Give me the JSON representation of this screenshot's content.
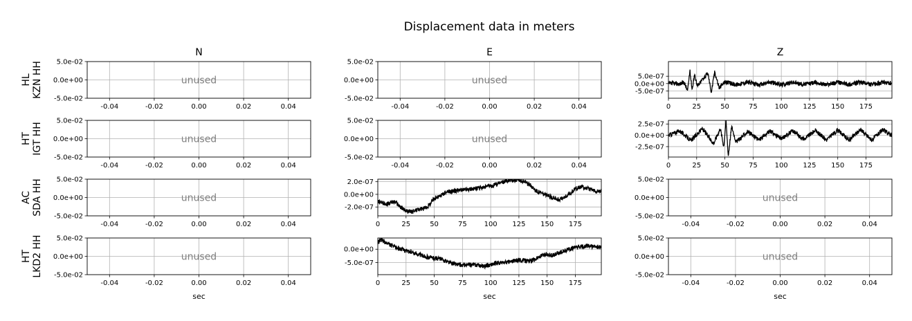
{
  "title": "Displacement data in meters",
  "column_titles": [
    "N",
    "E",
    "Z"
  ],
  "row_labels": [
    {
      "network": "HL",
      "station": "KZN HH"
    },
    {
      "network": "HT",
      "station": "IGT HH"
    },
    {
      "network": "AC",
      "station": "SDA HH"
    },
    {
      "network": "HT",
      "station": "LKD2 HH"
    }
  ],
  "xlabel": "sec",
  "unused_text": "unused",
  "unused_axis": {
    "xticks": [
      "-0.04",
      "-0.02",
      "0.00",
      "0.02",
      "0.04"
    ],
    "xtick_values": [
      -0.04,
      -0.02,
      0.0,
      0.02,
      0.04
    ],
    "xlim": [
      -0.05,
      0.05
    ],
    "yticks": [
      "5.0e-02",
      "0.0e+00",
      "-5.0e-02"
    ],
    "ytick_values": [
      0.05,
      0.0,
      -0.05
    ],
    "ylim": [
      -0.05,
      0.05
    ]
  },
  "chart_data": [
    {
      "type": "line",
      "row": 0,
      "col": 0,
      "unused": true
    },
    {
      "type": "line",
      "row": 0,
      "col": 1,
      "unused": true
    },
    {
      "type": "line",
      "row": 0,
      "col": 2,
      "unused": false,
      "xlim": [
        0,
        198
      ],
      "ylim": [
        -1e-06,
        1.5e-06
      ],
      "xticks": [
        0,
        25,
        50,
        75,
        100,
        125,
        150,
        175
      ],
      "yticks": [
        5e-07,
        0.0,
        -5e-07
      ],
      "ytick_labels": [
        "5.0e-07",
        "0.0e+00",
        "-5.0e-07"
      ],
      "series": [
        {
          "x": [
            0,
            5,
            10,
            14,
            17,
            19,
            21,
            23,
            26,
            30,
            35,
            38,
            41,
            45,
            50,
            60,
            70,
            80,
            90,
            100,
            110,
            120,
            130,
            140,
            150,
            160,
            170,
            180,
            190,
            198
          ],
          "y": [
            0.0,
            1e-08,
            -2e-08,
            8e-08,
            -5e-07,
            9e-07,
            -4e-07,
            6e-07,
            -2e-07,
            3e-07,
            7e-07,
            -6e-07,
            8e-07,
            -3e-07,
            1.2e-07,
            -8e-08,
            1e-07,
            -9e-08,
            1e-07,
            -7e-08,
            9e-08,
            -6e-08,
            8e-08,
            -7e-08,
            9e-08,
            -6e-08,
            8e-08,
            -7e-08,
            8e-08,
            0.0
          ]
        }
      ]
    },
    {
      "type": "line",
      "row": 1,
      "col": 0,
      "unused": true
    },
    {
      "type": "line",
      "row": 1,
      "col": 1,
      "unused": true
    },
    {
      "type": "line",
      "row": 1,
      "col": 2,
      "unused": false,
      "xlim": [
        0,
        198
      ],
      "ylim": [
        -4.8e-07,
        3.3e-07
      ],
      "xticks": [
        0,
        25,
        50,
        75,
        100,
        125,
        150,
        175
      ],
      "yticks": [
        2.5e-07,
        0.0,
        -2.5e-07
      ],
      "ytick_labels": [
        "2.5e-07",
        "0.0e+00",
        "-2.5e-07"
      ],
      "series": [
        {
          "x": [
            0,
            10,
            20,
            30,
            40,
            46,
            49,
            51,
            53,
            56,
            60,
            70,
            80,
            90,
            100,
            110,
            120,
            130,
            140,
            150,
            160,
            170,
            180,
            190,
            198
          ],
          "y": [
            0.0,
            1e-07,
            -1.2e-07,
            1.5e-07,
            -1.8e-07,
            1.6e-07,
            -2.5e-07,
            3.3e-07,
            -4.5e-07,
            2e-07,
            -1.5e-07,
            8e-08,
            -1e-07,
            9e-08,
            -8e-08,
            1e-07,
            -9e-08,
            1.1e-07,
            -1e-07,
            1.2e-07,
            -1.1e-07,
            1.3e-07,
            -1e-07,
            1.2e-07,
            0.0
          ]
        }
      ]
    },
    {
      "type": "line",
      "row": 2,
      "col": 0,
      "unused": true
    },
    {
      "type": "line",
      "row": 2,
      "col": 1,
      "unused": false,
      "xlim": [
        0,
        198
      ],
      "ylim": [
        -3.4e-07,
        2.4e-07
      ],
      "xticks": [
        0,
        25,
        50,
        75,
        100,
        125,
        150,
        175
      ],
      "yticks": [
        2e-07,
        0.0,
        -2e-07
      ],
      "ytick_labels": [
        "2.0e-07",
        "0.0e+00",
        "-2.0e-07"
      ],
      "series": [
        {
          "x": [
            0,
            8,
            15,
            20,
            25,
            30,
            35,
            40,
            45,
            50,
            55,
            60,
            70,
            80,
            90,
            100,
            110,
            115,
            120,
            125,
            130,
            135,
            140,
            150,
            160,
            165,
            170,
            175,
            180,
            185,
            190,
            198
          ],
          "y": [
            -1.2e-07,
            -1.5e-07,
            -1.1e-07,
            -2e-07,
            -2.6e-07,
            -2.8e-07,
            -2.4e-07,
            -2.3e-07,
            -1.8e-07,
            -6e-08,
            -3e-08,
            3e-08,
            6e-08,
            8e-08,
            1e-07,
            1.3e-07,
            1.9e-07,
            2.2e-07,
            2.3e-07,
            2.2e-07,
            2e-07,
            1.5e-07,
            6e-08,
            -2e-08,
            -8e-08,
            -6e-08,
            1e-08,
            9e-08,
            1.2e-07,
            1e-07,
            7e-08,
            4e-08
          ]
        }
      ]
    },
    {
      "type": "line",
      "row": 2,
      "col": 2,
      "unused": true
    },
    {
      "type": "line",
      "row": 3,
      "col": 0,
      "unused": true
    },
    {
      "type": "line",
      "row": 3,
      "col": 1,
      "unused": false,
      "xlim": [
        0,
        198
      ],
      "ylim": [
        -9.5e-07,
        4.2e-07
      ],
      "xticks": [
        0,
        25,
        50,
        75,
        100,
        125,
        150,
        175
      ],
      "yticks": [
        0.0,
        -5e-07
      ],
      "ytick_labels": [
        "0.0e+00",
        "-5.0e-07"
      ],
      "series": [
        {
          "x": [
            0,
            3,
            8,
            15,
            25,
            35,
            45,
            55,
            65,
            75,
            85,
            95,
            105,
            115,
            125,
            135,
            145,
            150,
            155,
            165,
            175,
            185,
            198
          ],
          "y": [
            2.5e-07,
            3.5e-07,
            2.2e-07,
            8e-08,
            -5e-08,
            -1.8e-07,
            -3e-07,
            -3.6e-07,
            -5.2e-07,
            -6e-07,
            -5.8e-07,
            -6.3e-07,
            -5.2e-07,
            -4.8e-07,
            -4e-07,
            -4.5e-07,
            -2.5e-07,
            -1.8e-07,
            -2.4e-07,
            -6e-08,
            6e-08,
            1.2e-07,
            7e-08
          ]
        }
      ]
    },
    {
      "type": "line",
      "row": 3,
      "col": 2,
      "unused": true
    }
  ]
}
